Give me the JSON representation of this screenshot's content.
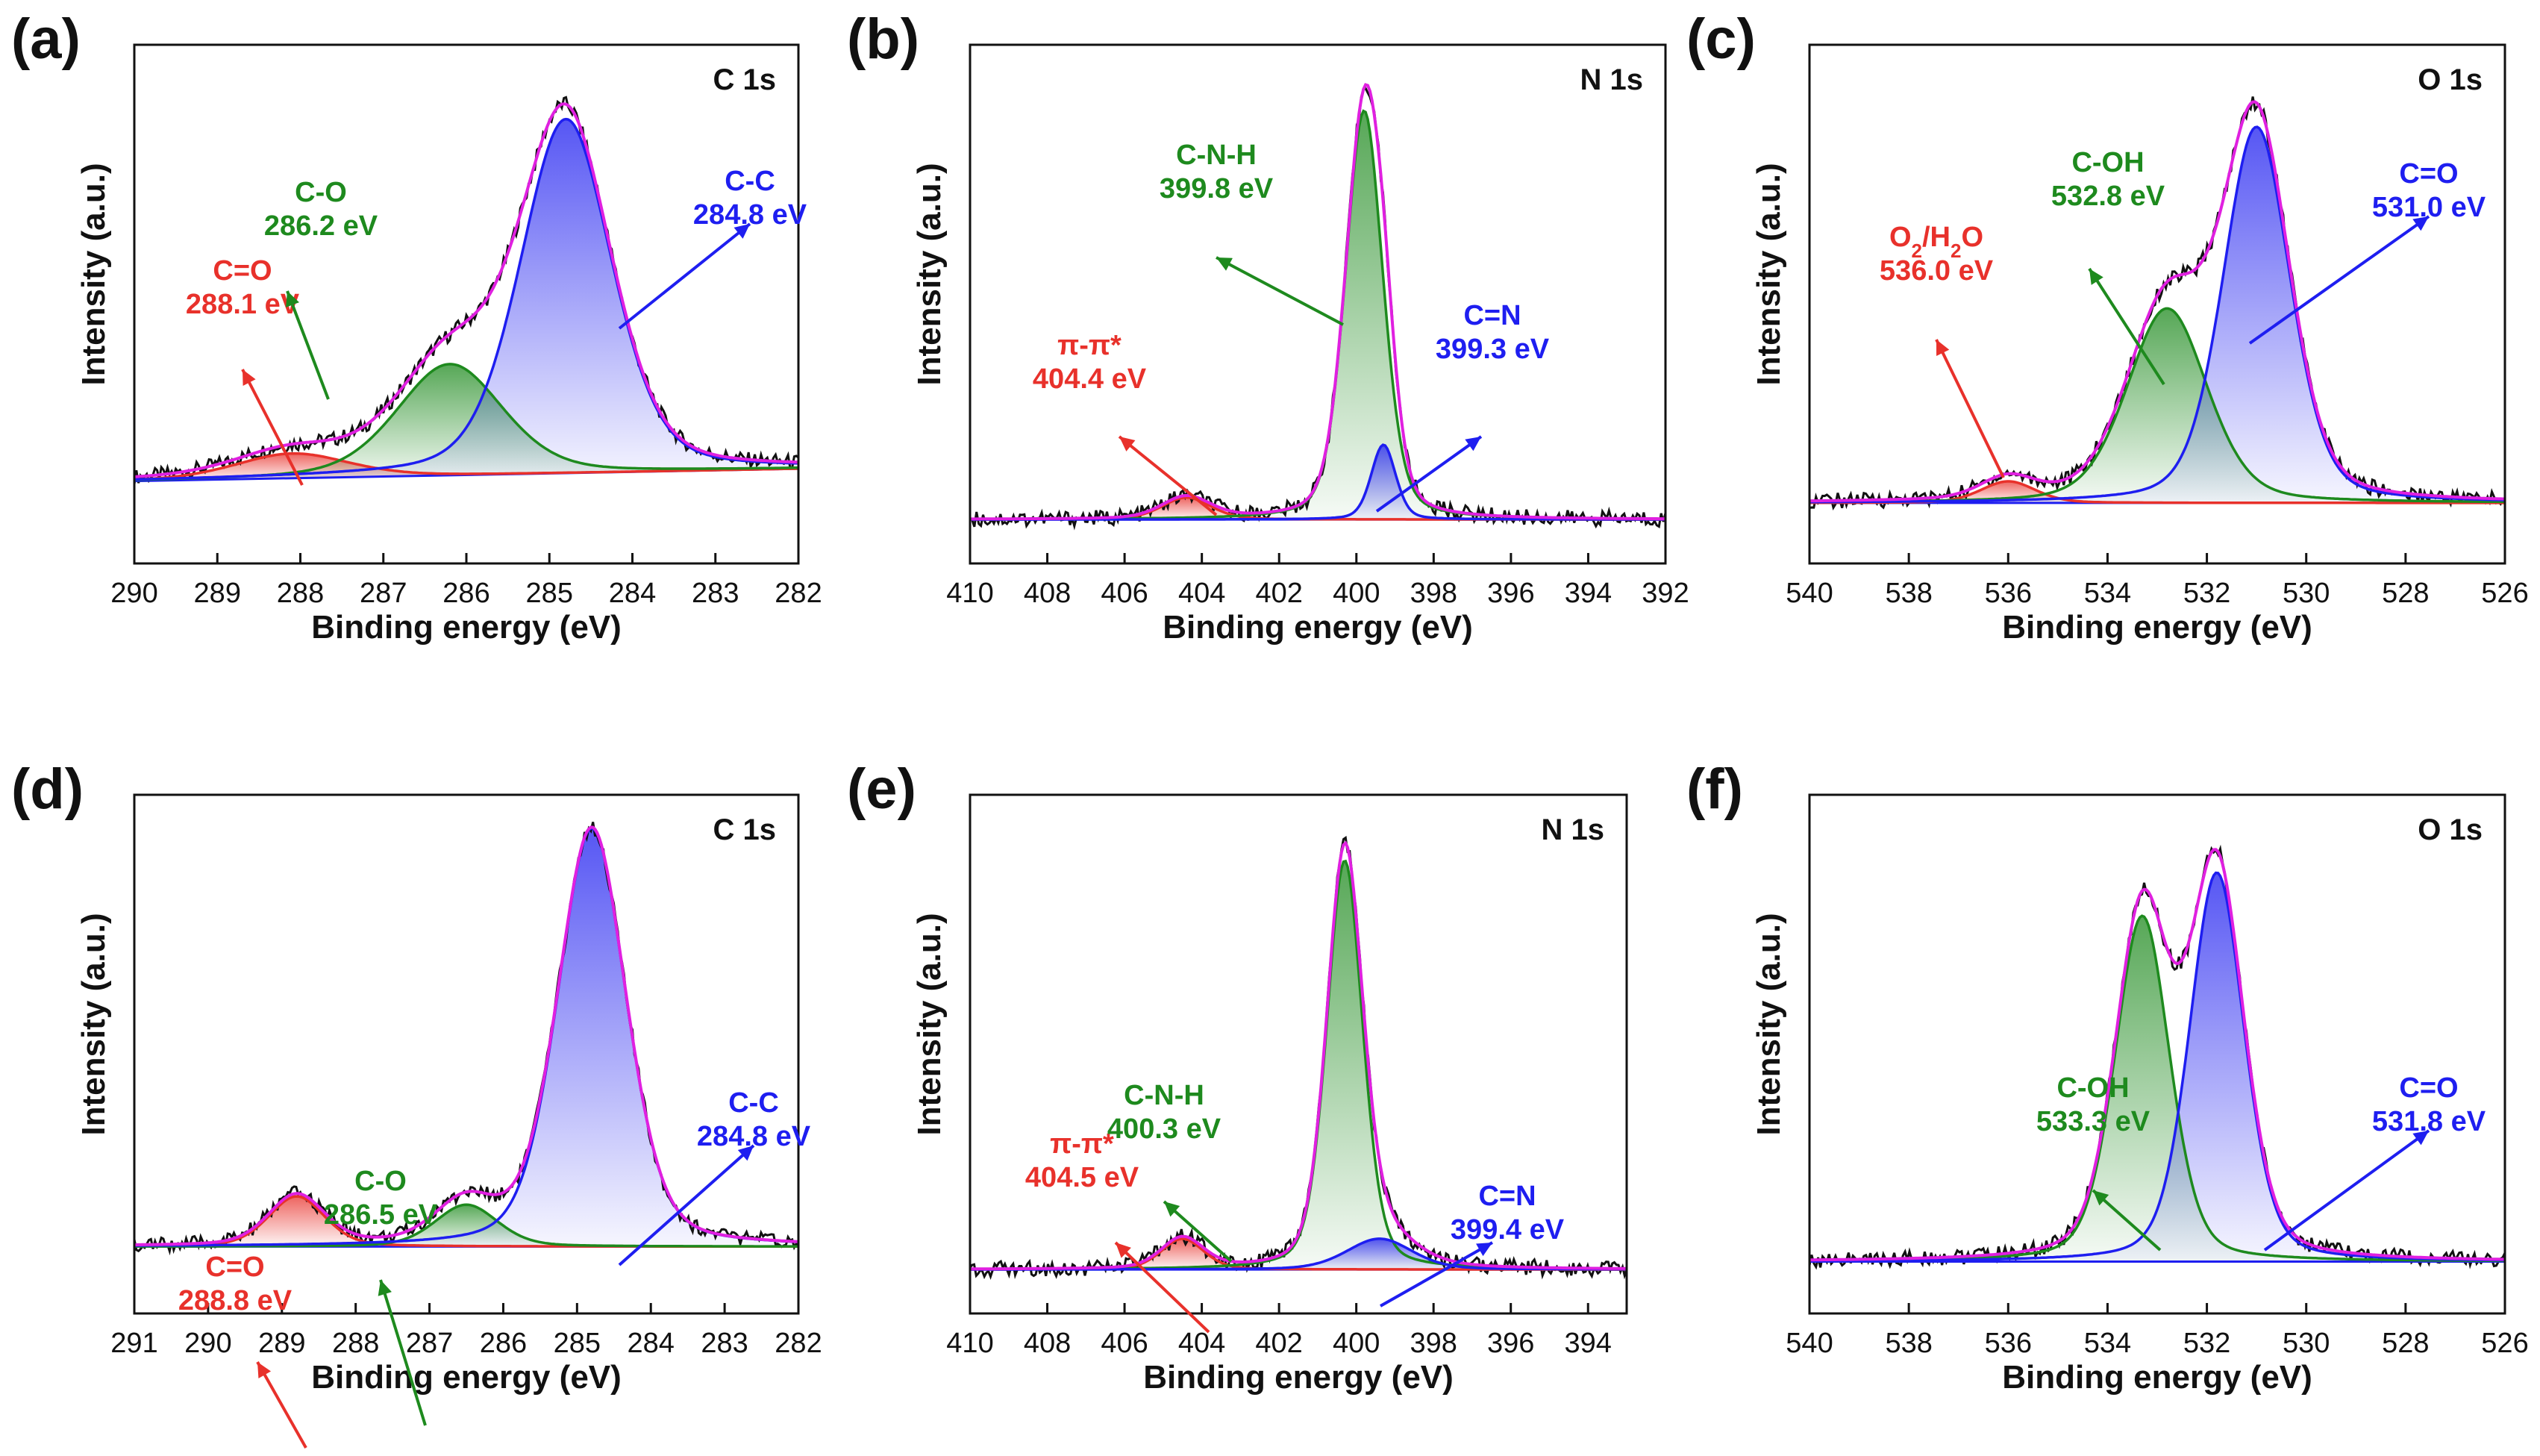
{
  "figure": {
    "axis_x_title": "Binding energy (eV)",
    "axis_y_title": "Intensity (a.u.)"
  },
  "colors": {
    "red": "#e8312b",
    "green": "#1e8a1e",
    "blue": "#1e1ef0",
    "magenta": "#e020e0",
    "raw": "#111111"
  },
  "chart_data": [
    {
      "type": "line",
      "panel": "(a)",
      "core": "C 1s",
      "xlim": [
        290,
        282
      ],
      "xticks": [
        290,
        289,
        288,
        287,
        286,
        285,
        284,
        283,
        282
      ],
      "ylim": [
        -0.18,
        1.08
      ],
      "baseline": [
        0.02,
        0.05
      ],
      "peaks": [
        {
          "name": "C=O",
          "center": 288.1,
          "amp": 0.06,
          "width": 1.6,
          "color": "red",
          "label": "C=O",
          "energy_label": "288.1 eV"
        },
        {
          "name": "C-O",
          "center": 286.2,
          "amp": 0.27,
          "width": 1.5,
          "color": "green",
          "label": "C-O",
          "energy_label": "286.2 eV"
        },
        {
          "name": "C-C",
          "center": 284.8,
          "amp": 0.86,
          "width": 1.3,
          "color": "blue",
          "label": "C-C",
          "energy_label": "284.8 eV"
        }
      ]
    },
    {
      "type": "line",
      "panel": "(b)",
      "core": "N 1s",
      "xlim": [
        410,
        392
      ],
      "xticks": [
        410,
        408,
        406,
        404,
        402,
        400,
        398,
        396,
        394,
        392
      ],
      "ylim": [
        -0.1,
        1.08
      ],
      "baseline": [
        0.0,
        0.0
      ],
      "peaks": [
        {
          "name": "π-π*",
          "center": 404.4,
          "amp": 0.05,
          "width": 1.5,
          "color": "red",
          "label": "π-π*",
          "energy_label": "404.4 eV"
        },
        {
          "name": "C-N-H",
          "center": 399.8,
          "amp": 0.93,
          "width": 1.15,
          "color": "green",
          "label": "C-N-H",
          "energy_label": "399.8 eV"
        },
        {
          "name": "C=N",
          "center": 399.3,
          "amp": 0.17,
          "width": 0.75,
          "color": "blue",
          "label": "C=N",
          "energy_label": "399.3 eV"
        }
      ]
    },
    {
      "type": "line",
      "panel": "(c)",
      "core": "O 1s",
      "xlim": [
        540,
        526
      ],
      "xticks": [
        540,
        538,
        536,
        534,
        532,
        530,
        528,
        526
      ],
      "ylim": [
        -0.12,
        1.08
      ],
      "baseline": [
        0.02,
        0.02
      ],
      "peaks": [
        {
          "name": "O2/H2O",
          "center": 536.0,
          "amp": 0.05,
          "width": 1.3,
          "color": "red",
          "label": "O2/H2O",
          "label_html": true,
          "energy_label": "536.0 eV"
        },
        {
          "name": "C-OH",
          "center": 532.8,
          "amp": 0.45,
          "width": 1.9,
          "color": "green",
          "label": "C-OH",
          "energy_label": "532.8 eV"
        },
        {
          "name": "C=O",
          "center": 531.0,
          "amp": 0.87,
          "width": 1.6,
          "color": "blue",
          "label": "C=O",
          "energy_label": "531.0 eV"
        }
      ]
    },
    {
      "type": "line",
      "panel": "(d)",
      "core": "C 1s",
      "xlim": [
        291,
        282
      ],
      "xticks": [
        291,
        290,
        289,
        288,
        287,
        286,
        285,
        284,
        283,
        282
      ],
      "ylim": [
        -0.16,
        1.08
      ],
      "baseline": [
        0.0,
        0.0
      ],
      "peaks": [
        {
          "name": "C=O",
          "center": 288.8,
          "amp": 0.12,
          "width": 0.9,
          "color": "red",
          "label": "C=O",
          "energy_label": "288.8 eV"
        },
        {
          "name": "C-O",
          "center": 286.5,
          "amp": 0.1,
          "width": 1.0,
          "color": "green",
          "label": "C-O",
          "energy_label": "286.5 eV"
        },
        {
          "name": "C-C",
          "center": 284.8,
          "amp": 1.0,
          "width": 1.1,
          "color": "blue",
          "label": "C-C",
          "energy_label": "284.8 eV"
        }
      ]
    },
    {
      "type": "line",
      "panel": "(e)",
      "core": "N 1s",
      "xlim": [
        410,
        393
      ],
      "xticks": [
        410,
        408,
        406,
        404,
        402,
        400,
        398,
        396,
        394
      ],
      "ylim": [
        -0.1,
        1.08
      ],
      "baseline": [
        0.0,
        0.0
      ],
      "peaks": [
        {
          "name": "π-π*",
          "center": 404.5,
          "amp": 0.07,
          "width": 1.3,
          "color": "red",
          "label": "π-π*",
          "energy_label": "404.5 eV"
        },
        {
          "name": "C-N-H",
          "center": 400.3,
          "amp": 0.93,
          "width": 1.1,
          "color": "green",
          "label": "C-N-H",
          "energy_label": "400.3 eV"
        },
        {
          "name": "C=N",
          "center": 399.4,
          "amp": 0.07,
          "width": 2.0,
          "color": "blue",
          "label": "C=N",
          "energy_label": "399.4 eV"
        }
      ]
    },
    {
      "type": "line",
      "panel": "(f)",
      "core": "O 1s",
      "xlim": [
        540,
        526
      ],
      "xticks": [
        540,
        538,
        536,
        534,
        532,
        530,
        528,
        526
      ],
      "ylim": [
        -0.12,
        1.08
      ],
      "baseline": [
        0.0,
        0.0
      ],
      "peaks": [
        {
          "name": "C-OH",
          "center": 533.3,
          "amp": 0.8,
          "width": 1.3,
          "color": "green",
          "label": "C-OH",
          "energy_label": "533.3 eV"
        },
        {
          "name": "C=O",
          "center": 531.8,
          "amp": 0.9,
          "width": 1.3,
          "color": "blue",
          "label": "C=O",
          "energy_label": "531.8 eV"
        }
      ]
    }
  ]
}
